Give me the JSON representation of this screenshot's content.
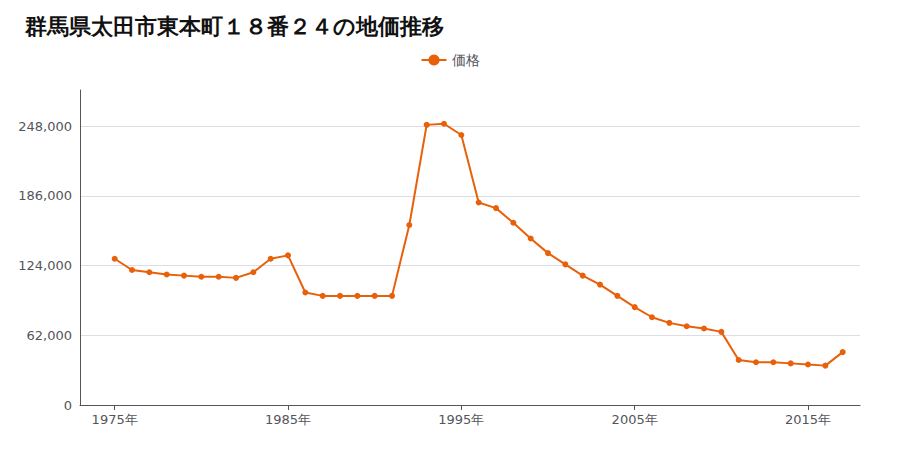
{
  "chart_data": {
    "type": "line",
    "title": "群馬県太田市東本町１８番２４の地価推移",
    "x": [
      1975,
      1976,
      1977,
      1978,
      1979,
      1980,
      1981,
      1982,
      1983,
      1984,
      1985,
      1986,
      1987,
      1988,
      1989,
      1990,
      1991,
      1992,
      1993,
      1994,
      1995,
      1996,
      1997,
      1998,
      1999,
      2000,
      2001,
      2002,
      2003,
      2004,
      2005,
      2006,
      2007,
      2008,
      2009,
      2010,
      2011,
      2012,
      2013,
      2014,
      2015,
      2016,
      2017
    ],
    "series": [
      {
        "name": "価格",
        "color": "#e8600a",
        "marker": "circle",
        "values": [
          130000,
          120000,
          118000,
          116000,
          115000,
          114000,
          114000,
          113000,
          118000,
          130000,
          133000,
          100000,
          97000,
          97000,
          97000,
          97000,
          97000,
          160000,
          249000,
          250000,
          240000,
          180000,
          175000,
          162000,
          148000,
          135000,
          125000,
          115000,
          107000,
          97000,
          87000,
          78000,
          73000,
          70000,
          68000,
          65000,
          40000,
          38000,
          38000,
          37000,
          36000,
          35000,
          47000
        ]
      }
    ],
    "xlim": [
      1973,
      2018
    ],
    "xticks": [
      {
        "value": 1975,
        "label": "1975年"
      },
      {
        "value": 1985,
        "label": "1985年"
      },
      {
        "value": 1995,
        "label": "1995年"
      },
      {
        "value": 2005,
        "label": "2005年"
      },
      {
        "value": 2015,
        "label": "2015年"
      }
    ],
    "ylim": [
      0,
      280000
    ],
    "yticks": [
      0,
      {
        "value": 62000,
        "label": "62,000"
      },
      {
        "value": 124000,
        "label": "124,000"
      },
      {
        "value": 186000,
        "label": "186,000"
      },
      {
        "value": 248000,
        "label": "248,000"
      }
    ],
    "grid": true,
    "legend": "top"
  }
}
